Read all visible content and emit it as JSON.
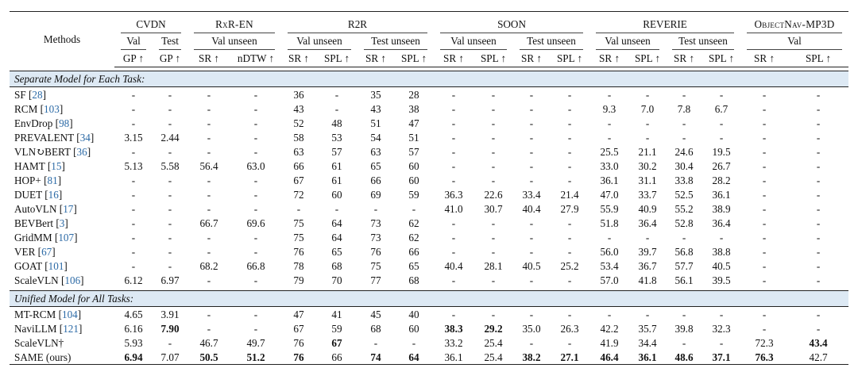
{
  "header": {
    "methods_label": "Methods",
    "groups": [
      {
        "id": "cvdn",
        "label": "CVDN",
        "span": 2,
        "smallcaps": false
      },
      {
        "id": "rxr",
        "label": "RxR-EN",
        "span": 2,
        "smallcaps": true
      },
      {
        "id": "r2r",
        "label": "R2R",
        "span": 4,
        "smallcaps": false
      },
      {
        "id": "soon",
        "label": "SOON",
        "span": 4,
        "smallcaps": false
      },
      {
        "id": "reverie",
        "label": "REVERIE",
        "span": 4,
        "smallcaps": false
      },
      {
        "id": "objectnav",
        "label": "ObjectNav-MP3D",
        "span": 2,
        "smallcaps": true
      }
    ],
    "splits": [
      {
        "label": "Val",
        "span": 1
      },
      {
        "label": "Test",
        "span": 1
      },
      {
        "label": "Val unseen",
        "span": 2
      },
      {
        "label": "Val unseen",
        "span": 2
      },
      {
        "label": "Test unseen",
        "span": 2
      },
      {
        "label": "Val unseen",
        "span": 2
      },
      {
        "label": "Test unseen",
        "span": 2
      },
      {
        "label": "Val unseen",
        "span": 2
      },
      {
        "label": "Test unseen",
        "span": 2
      },
      {
        "label": "Val",
        "span": 2
      }
    ],
    "metrics": [
      "GP ↑",
      "GP ↑",
      "SR ↑",
      "nDTW ↑",
      "SR ↑",
      "SPL ↑",
      "SR ↑",
      "SPL ↑",
      "SR ↑",
      "SPL ↑",
      "SR ↑",
      "SPL ↑",
      "SR ↑",
      "SPL ↑",
      "SR ↑",
      "SPL ↑",
      "SR ↑",
      "SPL ↑"
    ]
  },
  "sections": [
    {
      "title": "Separate Model for Each Task:",
      "rows": [
        {
          "method": "SF",
          "ref": "28",
          "values": [
            "-",
            "-",
            "-",
            "-",
            "36",
            "-",
            "35",
            "28",
            "-",
            "-",
            "-",
            "-",
            "-",
            "-",
            "-",
            "-",
            "-",
            "-"
          ]
        },
        {
          "method": "RCM",
          "ref": "103",
          "values": [
            "-",
            "-",
            "-",
            "-",
            "43",
            "-",
            "43",
            "38",
            "-",
            "-",
            "-",
            "-",
            "9.3",
            "7.0",
            "7.8",
            "6.7",
            "-",
            "-"
          ]
        },
        {
          "method": "EnvDrop",
          "ref": "98",
          "values": [
            "-",
            "-",
            "-",
            "-",
            "52",
            "48",
            "51",
            "47",
            "-",
            "-",
            "-",
            "-",
            "-",
            "-",
            "-",
            "-",
            "-",
            "-"
          ]
        },
        {
          "method": "PREVALENT",
          "ref": "34",
          "values": [
            "3.15",
            "2.44",
            "-",
            "-",
            "58",
            "53",
            "54",
            "51",
            "-",
            "-",
            "-",
            "-",
            "-",
            "-",
            "-",
            "-",
            "-",
            "-"
          ]
        },
        {
          "method": "VLN↻BERT",
          "ref": "36",
          "values": [
            "-",
            "-",
            "-",
            "-",
            "63",
            "57",
            "63",
            "57",
            "-",
            "-",
            "-",
            "-",
            "25.5",
            "21.1",
            "24.6",
            "19.5",
            "-",
            "-"
          ]
        },
        {
          "method": "HAMT",
          "ref": "15",
          "values": [
            "5.13",
            "5.58",
            "56.4",
            "63.0",
            "66",
            "61",
            "65",
            "60",
            "-",
            "-",
            "-",
            "-",
            "33.0",
            "30.2",
            "30.4",
            "26.7",
            "-",
            "-"
          ]
        },
        {
          "method": "HOP+",
          "ref": "81",
          "values": [
            "-",
            "-",
            "-",
            "-",
            "67",
            "61",
            "66",
            "60",
            "-",
            "-",
            "-",
            "-",
            "36.1",
            "31.1",
            "33.8",
            "28.2",
            "-",
            "-"
          ]
        },
        {
          "method": "DUET",
          "ref": "16",
          "values": [
            "-",
            "-",
            "-",
            "-",
            "72",
            "60",
            "69",
            "59",
            "36.3",
            "22.6",
            "33.4",
            "21.4",
            "47.0",
            "33.7",
            "52.5",
            "36.1",
            "-",
            "-"
          ]
        },
        {
          "method": "AutoVLN",
          "ref": "17",
          "values": [
            "-",
            "-",
            "-",
            "-",
            "-",
            "-",
            "-",
            "-",
            "41.0",
            "30.7",
            "40.4",
            "27.9",
            "55.9",
            "40.9",
            "55.2",
            "38.9",
            "-",
            "-"
          ]
        },
        {
          "method": "BEVBert",
          "ref": "3",
          "values": [
            "-",
            "-",
            "66.7",
            "69.6",
            "75",
            "64",
            "73",
            "62",
            "-",
            "-",
            "-",
            "-",
            "51.8",
            "36.4",
            "52.8",
            "36.4",
            "-",
            "-"
          ]
        },
        {
          "method": "GridMM",
          "ref": "107",
          "values": [
            "-",
            "-",
            "-",
            "-",
            "75",
            "64",
            "73",
            "62",
            "-",
            "-",
            "-",
            "-",
            "-",
            "-",
            "-",
            "-",
            "-",
            "-"
          ]
        },
        {
          "method": "VER",
          "ref": "67",
          "values": [
            "-",
            "-",
            "-",
            "-",
            "76",
            "65",
            "76",
            "66",
            "-",
            "-",
            "-",
            "-",
            "56.0",
            "39.7",
            "56.8",
            "38.8",
            "-",
            "-"
          ]
        },
        {
          "method": "GOAT",
          "ref": "101",
          "values": [
            "-",
            "-",
            "68.2",
            "66.8",
            "78",
            "68",
            "75",
            "65",
            "40.4",
            "28.1",
            "40.5",
            "25.2",
            "53.4",
            "36.7",
            "57.7",
            "40.5",
            "-",
            "-"
          ]
        },
        {
          "method": "ScaleVLN",
          "ref": "106",
          "values": [
            "6.12",
            "6.97",
            "-",
            "-",
            "79",
            "70",
            "77",
            "68",
            "-",
            "-",
            "-",
            "-",
            "57.0",
            "41.8",
            "56.1",
            "39.5",
            "-",
            "-"
          ]
        }
      ]
    },
    {
      "title": "Unified Model for All Tasks:",
      "rows": [
        {
          "method": "MT-RCM",
          "ref": "104",
          "values": [
            "4.65",
            "3.91",
            "-",
            "-",
            "47",
            "41",
            "45",
            "40",
            "-",
            "-",
            "-",
            "-",
            "-",
            "-",
            "-",
            "-",
            "-",
            "-"
          ]
        },
        {
          "method": "NaviLLM",
          "ref": "121",
          "values": [
            "6.16",
            "7.90",
            "-",
            "-",
            "67",
            "59",
            "68",
            "60",
            "38.3",
            "29.2",
            "35.0",
            "26.3",
            "42.2",
            "35.7",
            "39.8",
            "32.3",
            "-",
            "-"
          ],
          "bold": [
            1,
            8,
            9
          ]
        },
        {
          "method": "ScaleVLN†",
          "ref": "",
          "values": [
            "5.93",
            "-",
            "46.7",
            "49.7",
            "76",
            "67",
            "-",
            "-",
            "33.2",
            "25.4",
            "-",
            "-",
            "41.9",
            "34.4",
            "-",
            "-",
            "72.3",
            "43.4"
          ],
          "bold": [
            5,
            17
          ]
        },
        {
          "method": "SAME (ours)",
          "ref": "",
          "values": [
            "6.94",
            "7.07",
            "50.5",
            "51.2",
            "76",
            "66",
            "74",
            "64",
            "36.1",
            "25.4",
            "38.2",
            "27.1",
            "46.4",
            "36.1",
            "48.6",
            "37.1",
            "76.3",
            "42.7"
          ],
          "bold": [
            0,
            2,
            3,
            4,
            6,
            7,
            10,
            11,
            12,
            13,
            14,
            15,
            16
          ]
        }
      ]
    }
  ]
}
